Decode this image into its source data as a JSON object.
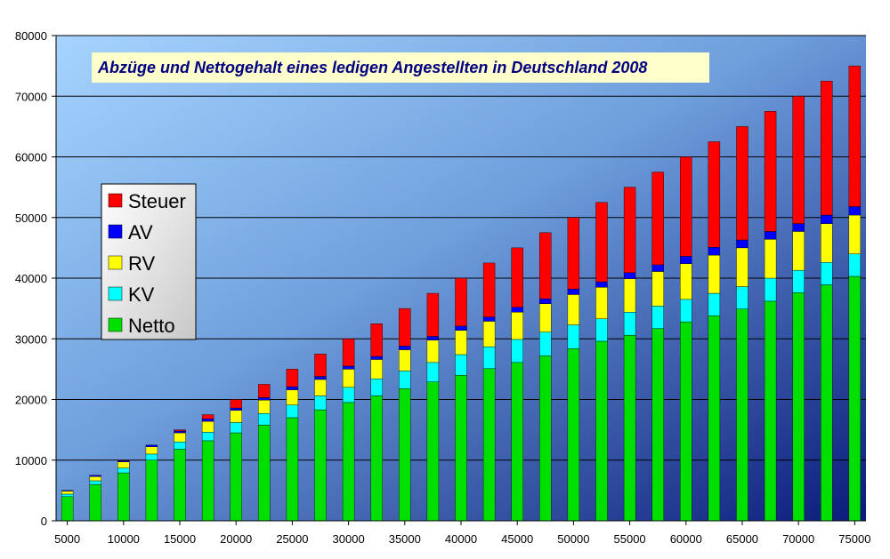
{
  "chart_data": {
    "type": "bar",
    "stacked": true,
    "title": "Abzüge und Nettogehalt eines ledigen Angestellten in Deutschland 2008",
    "xlabel": "",
    "ylabel": "",
    "ylim": [
      0,
      80000
    ],
    "yticks": [
      "0",
      "10000",
      "20000",
      "30000",
      "40000",
      "50000",
      "60000",
      "70000",
      "80000"
    ],
    "xticks": [
      "5000",
      "10000",
      "15000",
      "20000",
      "25000",
      "30000",
      "35000",
      "40000",
      "45000",
      "50000",
      "55000",
      "60000",
      "65000",
      "70000",
      "75000"
    ],
    "grid": true,
    "legend_position": "left",
    "legend_order": [
      "Steuer",
      "AV",
      "RV",
      "KV",
      "Netto"
    ],
    "categories": [
      5000,
      7500,
      10000,
      12500,
      15000,
      17500,
      20000,
      22500,
      25000,
      27500,
      30000,
      32500,
      35000,
      37500,
      40000,
      42500,
      45000,
      47500,
      50000,
      52500,
      55000,
      57500,
      60000,
      62500,
      65000,
      67500,
      70000,
      72500,
      75000
    ],
    "series": [
      {
        "name": "Netto",
        "color": "#00e000",
        "values": [
          4000,
          6000,
          7900,
          10000,
          11800,
          13200,
          14500,
          15800,
          17000,
          18300,
          19500,
          20600,
          21800,
          22900,
          24000,
          25100,
          26100,
          27200,
          28400,
          29600,
          30600,
          31700,
          32800,
          33800,
          34900,
          36200,
          37600,
          38900,
          40300
        ]
      },
      {
        "name": "KV",
        "color": "#00ffff",
        "values": [
          400,
          600,
          800,
          1000,
          1200,
          1400,
          1700,
          1900,
          2100,
          2300,
          2500,
          2800,
          2900,
          3200,
          3400,
          3600,
          3800,
          3900,
          3900,
          3700,
          3800,
          3700,
          3700,
          3700,
          3700,
          3800,
          3700,
          3700,
          3700
        ]
      },
      {
        "name": "RV",
        "color": "#ffff00",
        "values": [
          500,
          700,
          1000,
          1200,
          1500,
          1800,
          2000,
          2200,
          2500,
          2700,
          3000,
          3200,
          3500,
          3700,
          4000,
          4200,
          4500,
          4700,
          5000,
          5200,
          5500,
          5700,
          5900,
          6300,
          6400,
          6400,
          6400,
          6400,
          6400
        ]
      },
      {
        "name": "AV",
        "color": "#0000ff",
        "values": [
          100,
          200,
          200,
          300,
          300,
          400,
          400,
          400,
          500,
          500,
          500,
          500,
          600,
          600,
          700,
          700,
          800,
          800,
          900,
          900,
          1000,
          1100,
          1200,
          1300,
          1300,
          1300,
          1300,
          1400,
          1400
        ]
      },
      {
        "name": "Steuer",
        "color": "#ff0000",
        "values": [
          0,
          0,
          100,
          0,
          200,
          700,
          1400,
          2200,
          2900,
          3700,
          4500,
          5400,
          6200,
          7100,
          7900,
          8900,
          9800,
          10900,
          11800,
          13100,
          14100,
          15300,
          16400,
          17400,
          18700,
          19800,
          21000,
          22100,
          23200
        ]
      }
    ]
  }
}
